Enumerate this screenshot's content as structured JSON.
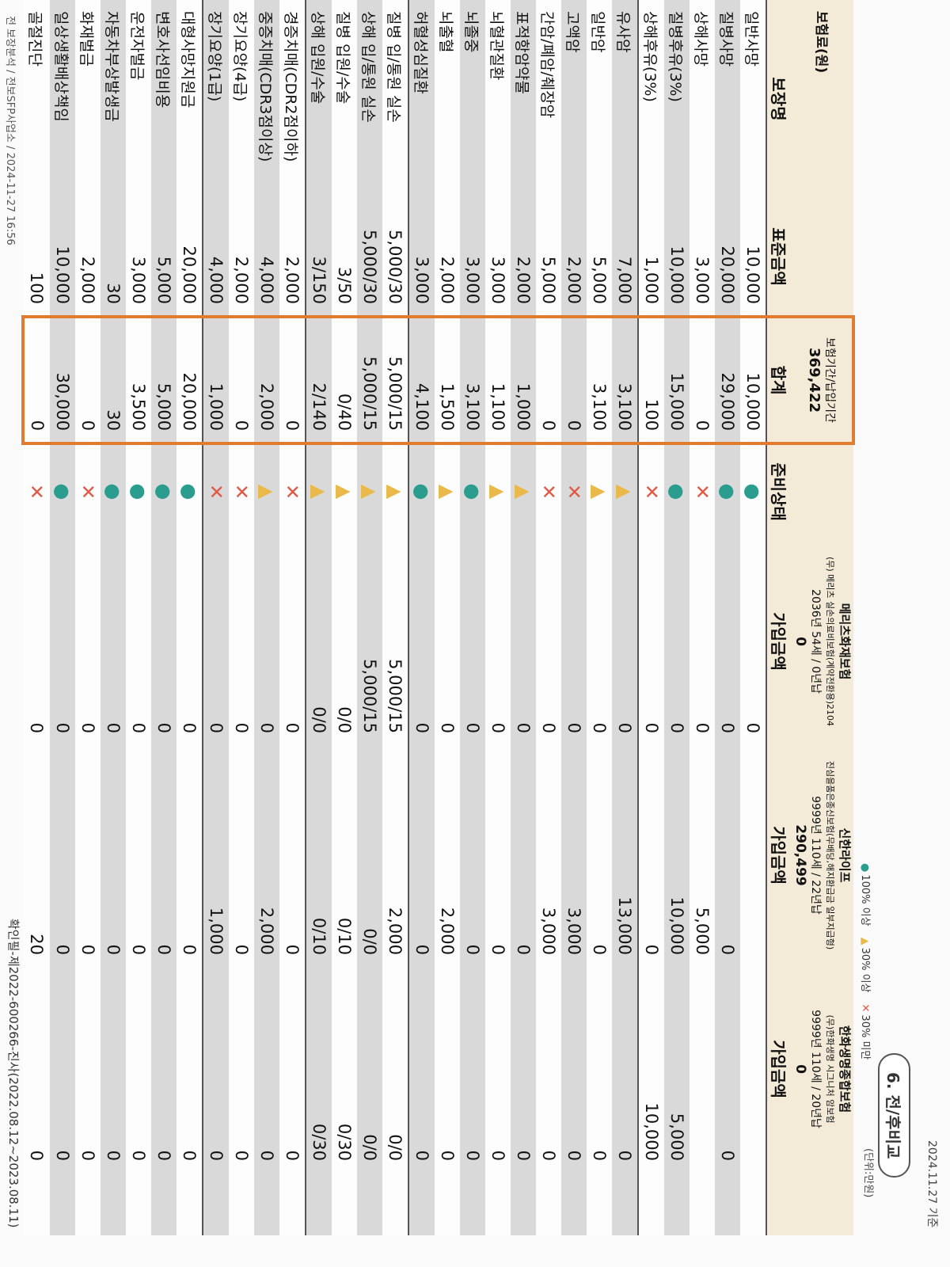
{
  "header": {
    "badge": "6. 전/후비교",
    "date": "2024.11.27 기준",
    "unit": "(단위:만원)"
  },
  "legend": [
    {
      "symbol": "●",
      "label": "100% 이상",
      "color": "#2a9d8f"
    },
    {
      "symbol": "▲",
      "label": "30% 이상",
      "color": "#e9b949"
    },
    {
      "symbol": "✕",
      "label": "30% 미만",
      "color": "#e05a47"
    }
  ],
  "columns": {
    "coverage": "보장명",
    "standard": "표준금액",
    "total": "합계",
    "status": "준비상태"
  },
  "premium": {
    "label": "보험료(원)",
    "period_label": "보험기간/납입기간",
    "total": "369,422"
  },
  "products": [
    {
      "company": "메리츠화재보험",
      "name": "(무) 메리츠 실손의료비보험(계약전환용)2104",
      "period": "2036년 54세 / 0년납",
      "premium": "0",
      "amount_label": "가입금액"
    },
    {
      "company": "신한라이프",
      "name": "진심을품은종신보험(무배당,해지환급금 일부지급형)",
      "period": "9999년 110세 / 22년납",
      "premium": "290,499",
      "amount_label": "가입금액"
    },
    {
      "company": "한화생명종합보험",
      "name": "(무)한화생명 시그니처 암보험",
      "period": "9999년 110세 / 20년납",
      "premium": "0",
      "amount_label": "가입금액"
    }
  ],
  "rows": [
    {
      "label": "일반사망",
      "standard": "10,000",
      "total": "10,000",
      "status": "●",
      "amounts": [
        "0",
        null,
        null
      ]
    },
    {
      "label": "질병사망",
      "standard": "20,000",
      "total": "29,000",
      "status": "●",
      "amounts": [
        "0",
        "0",
        "0"
      ]
    },
    {
      "label": "상해사망",
      "standard": "3,000",
      "total": "0",
      "status": "✕",
      "amounts": [
        "0",
        "5,000",
        null
      ]
    },
    {
      "label": "질병후유(3%)",
      "standard": "10,000",
      "total": "15,000",
      "status": "●",
      "amounts": [
        "0",
        "10,000",
        "5,000"
      ]
    },
    {
      "label": "상해후유(3%)",
      "standard": "1,000",
      "total": "100",
      "status": "✕",
      "amounts": [
        "0",
        "0",
        "10,000"
      ]
    },
    {
      "label": "유사암",
      "standard": "7,000",
      "total": "3,100",
      "status": "▲",
      "amounts": [
        "0",
        "13,000",
        "0"
      ]
    },
    {
      "label": "일반암",
      "standard": "5,000",
      "total": "3,100",
      "status": "▲",
      "amounts": [
        "0",
        "0",
        "0"
      ]
    },
    {
      "label": "고액암",
      "standard": "2,000",
      "total": "0",
      "status": "✕",
      "amounts": [
        "0",
        "3,000",
        "0"
      ]
    },
    {
      "label": "간암/폐암/췌장암",
      "standard": "5,000",
      "total": "0",
      "status": "✕",
      "amounts": [
        "0",
        "3,000",
        "0"
      ]
    },
    {
      "label": "표적항암약물",
      "standard": "2,000",
      "total": "1,000",
      "status": "▲",
      "amounts": [
        "0",
        "0",
        "0"
      ]
    },
    {
      "label": "뇌혈관질환",
      "standard": "3,000",
      "total": "1,100",
      "status": "▲",
      "amounts": [
        "0",
        "0",
        "0"
      ]
    },
    {
      "label": "뇌졸중",
      "standard": "3,000",
      "total": "3,100",
      "status": "●",
      "amounts": [
        "0",
        "0",
        "0"
      ]
    },
    {
      "label": "뇌출혈",
      "standard": "2,000",
      "total": "1,500",
      "status": "▲",
      "amounts": [
        "0",
        "2,000",
        "0"
      ]
    },
    {
      "label": "허혈성심질환",
      "standard": "3,000",
      "total": "4,100",
      "status": "●",
      "amounts": [
        "0",
        "0",
        "0"
      ]
    },
    {
      "label": "질병 입/통원 실손",
      "standard": "5,000/30",
      "total": "5,000/15",
      "status": "▲",
      "amounts": [
        "5,000/15",
        "2,000",
        "0/0"
      ]
    },
    {
      "label": "상해 입/통원 실손",
      "standard": "5,000/30",
      "total": "5,000/15",
      "status": "▲",
      "amounts": [
        "5,000/15",
        "0/0",
        "0/0"
      ]
    },
    {
      "label": "질병 입원/수술",
      "standard": "3/50",
      "total": "0/40",
      "status": "▲",
      "amounts": [
        "0/0",
        "0/10",
        "0/30"
      ]
    },
    {
      "label": "상해 입원/수술",
      "standard": "3/150",
      "total": "2/140",
      "status": "▲",
      "amounts": [
        "0/0",
        "0/10",
        "0/30"
      ]
    },
    {
      "label": "경증치매(CDR2점이하)",
      "standard": "2,000",
      "total": "0",
      "status": "✕",
      "amounts": [
        "0",
        "0",
        "0"
      ]
    },
    {
      "label": "중증치매(CDR3점이상)",
      "standard": "4,000",
      "total": "2,000",
      "status": "▲",
      "amounts": [
        "0",
        "2,000",
        "0"
      ]
    },
    {
      "label": "장기요양(4급)",
      "standard": "2,000",
      "total": "0",
      "status": "✕",
      "amounts": [
        "0",
        "0",
        "0"
      ]
    },
    {
      "label": "장기요양(1급)",
      "standard": "4,000",
      "total": "1,000",
      "status": "✕",
      "amounts": [
        "0",
        "1,000",
        "0"
      ]
    },
    {
      "label": "대형사망지원금",
      "standard": "20,000",
      "total": "20,000",
      "status": "●",
      "amounts": [
        "0",
        "0",
        "0"
      ]
    },
    {
      "label": "변호사선임비용",
      "standard": "5,000",
      "total": "5,000",
      "status": "●",
      "amounts": [
        "0",
        "0",
        "0"
      ]
    },
    {
      "label": "운전자벌금",
      "standard": "3,000",
      "total": "3,500",
      "status": "●",
      "amounts": [
        "0",
        "0",
        "0"
      ]
    },
    {
      "label": "자동차부상발생금",
      "standard": "30",
      "total": "30",
      "status": "●",
      "amounts": [
        "0",
        "0",
        "0"
      ]
    },
    {
      "label": "화재벌금",
      "standard": "2,000",
      "total": "0",
      "status": "✕",
      "amounts": [
        "0",
        "0",
        "0"
      ]
    },
    {
      "label": "일상생활배상책임",
      "standard": "10,000",
      "total": "30,000",
      "status": "●",
      "amounts": [
        "0",
        "0",
        "0"
      ]
    },
    {
      "label": "골절진단",
      "standard": "100",
      "total": "0",
      "status": "✕",
      "amounts": [
        "0",
        "20",
        "0"
      ]
    }
  ],
  "footer": {
    "approval": "확인필-제2022-600266-진사(2022.08.12~2023.08.11)",
    "print_info": "전 보장분석 / 전보SFP사업소 / 2024-11-27 16:56"
  }
}
